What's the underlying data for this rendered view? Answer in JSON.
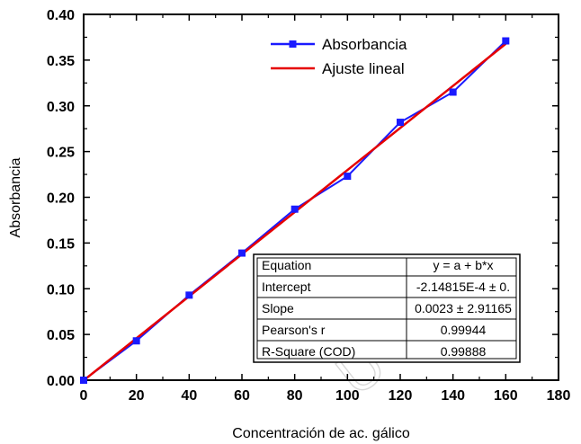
{
  "chart_data": {
    "type": "line",
    "title": "",
    "xlabel": "Concentración de ac. gálico",
    "ylabel": "Absorbancia",
    "xlim": [
      0,
      180
    ],
    "ylim": [
      0,
      0.4
    ],
    "x_ticks": [
      "0",
      "20",
      "40",
      "60",
      "80",
      "100",
      "120",
      "140",
      "160",
      "180"
    ],
    "y_ticks": [
      "0.00",
      "0.05",
      "0.10",
      "0.15",
      "0.20",
      "0.25",
      "0.30",
      "0.35",
      "0.40"
    ],
    "grid": false,
    "legend_position": "top-right",
    "series": [
      {
        "name": "Absorbancia",
        "color": "#1a1aff",
        "marker": "square",
        "x": [
          0,
          20,
          40,
          60,
          80,
          100,
          120,
          140,
          160
        ],
        "y": [
          0.0,
          0.043,
          0.093,
          0.139,
          0.187,
          0.223,
          0.282,
          0.315,
          0.371
        ]
      },
      {
        "name": "Ajuste lineal",
        "color": "#e60000",
        "marker": "none",
        "x": [
          0,
          160
        ],
        "y": [
          -0.000215,
          0.3678
        ]
      }
    ],
    "fit_table": {
      "rows": [
        [
          "Equation",
          "y = a + b*x"
        ],
        [
          "Intercept",
          "-2.14815E-4 ± 0."
        ],
        [
          "Slope",
          "0.0023 ± 2.91165"
        ],
        [
          "Pearson's r",
          "0.99944"
        ],
        [
          "R-Square (COD)",
          "0.99888"
        ]
      ]
    }
  },
  "watermark": {
    "text": "U A Q",
    "color": "#d8d8d8"
  }
}
